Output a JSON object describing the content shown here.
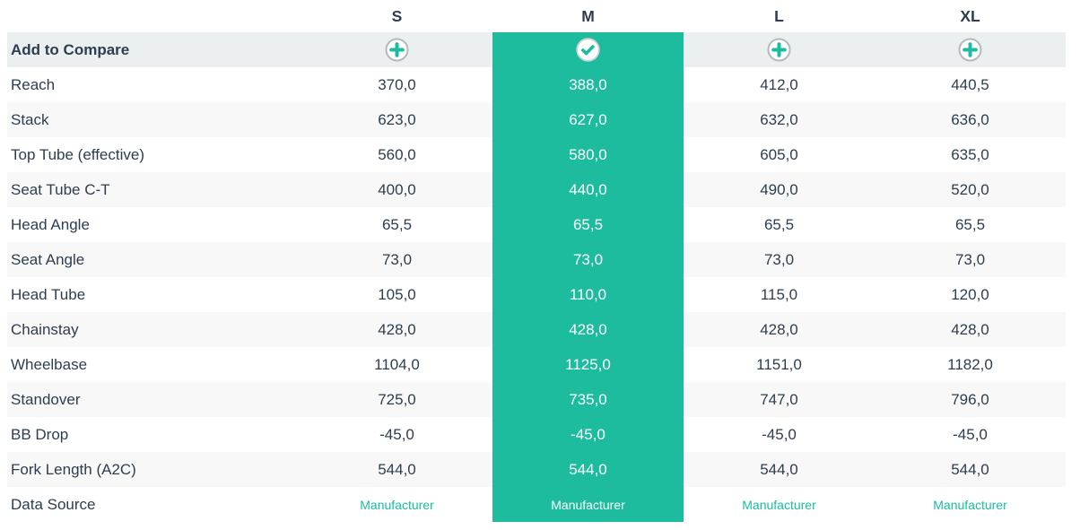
{
  "colors": {
    "accent_teal": "#1dbc9e",
    "link_teal": "#1bbc9d",
    "text_dark": "#2d3e50",
    "compare_row_bg": "#ebefef",
    "stripe_bg": "#f8f8f8"
  },
  "table": {
    "sizes": [
      "S",
      "M",
      "L",
      "XL"
    ],
    "selected_size": "M",
    "compare": {
      "label": "Add to Compare",
      "icons": [
        "plus-icon",
        "check-icon",
        "plus-icon",
        "plus-icon"
      ]
    },
    "rows": [
      {
        "label": "Reach",
        "values": [
          "370,0",
          "388,0",
          "412,0",
          "440,5"
        ]
      },
      {
        "label": "Stack",
        "values": [
          "623,0",
          "627,0",
          "632,0",
          "636,0"
        ]
      },
      {
        "label": "Top Tube (effective)",
        "values": [
          "560,0",
          "580,0",
          "605,0",
          "635,0"
        ]
      },
      {
        "label": "Seat Tube C-T",
        "values": [
          "400,0",
          "440,0",
          "490,0",
          "520,0"
        ]
      },
      {
        "label": "Head Angle",
        "values": [
          "65,5",
          "65,5",
          "65,5",
          "65,5"
        ]
      },
      {
        "label": "Seat Angle",
        "values": [
          "73,0",
          "73,0",
          "73,0",
          "73,0"
        ]
      },
      {
        "label": "Head Tube",
        "values": [
          "105,0",
          "110,0",
          "115,0",
          "120,0"
        ]
      },
      {
        "label": "Chainstay",
        "values": [
          "428,0",
          "428,0",
          "428,0",
          "428,0"
        ]
      },
      {
        "label": "Wheelbase",
        "values": [
          "1104,0",
          "1125,0",
          "1151,0",
          "1182,0"
        ]
      },
      {
        "label": "Standover",
        "values": [
          "725,0",
          "735,0",
          "747,0",
          "796,0"
        ]
      },
      {
        "label": "BB Drop",
        "values": [
          "-45,0",
          "-45,0",
          "-45,0",
          "-45,0"
        ]
      },
      {
        "label": "Fork Length (A2C)",
        "values": [
          "544,0",
          "544,0",
          "544,0",
          "544,0"
        ]
      }
    ],
    "data_source": {
      "label": "Data Source",
      "values": [
        "Manufacturer",
        "Manufacturer",
        "Manufacturer",
        "Manufacturer"
      ]
    }
  }
}
